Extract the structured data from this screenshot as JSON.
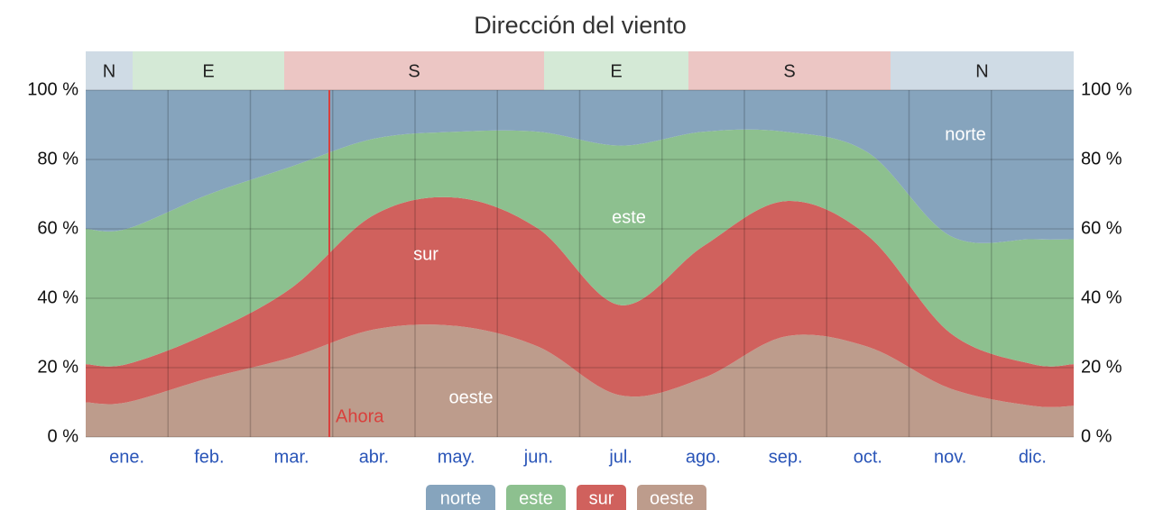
{
  "chart_data": {
    "type": "stacked_area",
    "title": "Dirección del viento",
    "categories": [
      "ene.",
      "feb.",
      "mar.",
      "abr.",
      "may.",
      "jun.",
      "jul.",
      "ago.",
      "sep.",
      "oct.",
      "nov.",
      "dic."
    ],
    "series": [
      {
        "name": "oeste",
        "color": "#bd9c8c",
        "values": [
          10,
          17,
          23,
          31,
          32,
          26,
          12,
          17,
          29,
          26,
          14,
          9
        ]
      },
      {
        "name": "sur",
        "color": "#d0615d",
        "values": [
          11,
          13,
          20,
          33,
          37,
          34,
          26,
          38,
          39,
          32,
          16,
          12
        ]
      },
      {
        "name": "este",
        "color": "#8dc08f",
        "values": [
          39,
          40,
          35,
          22,
          19,
          28,
          46,
          33,
          20,
          24,
          28,
          36
        ]
      },
      {
        "name": "norte",
        "color": "#86a4bd",
        "values": [
          40,
          30,
          22,
          14,
          12,
          12,
          16,
          12,
          12,
          18,
          42,
          43
        ]
      }
    ],
    "ylim": [
      0,
      100
    ],
    "yticks": [
      {
        "value": 0,
        "label": "0 %"
      },
      {
        "value": 20,
        "label": "20 %"
      },
      {
        "value": 40,
        "label": "40 %"
      },
      {
        "value": 60,
        "label": "60 %"
      },
      {
        "value": 80,
        "label": "80 %"
      },
      {
        "value": 100,
        "label": "100 %"
      }
    ],
    "y2lim": [
      100,
      0
    ],
    "y2ticks": [
      {
        "value": 0,
        "label": "100 %"
      },
      {
        "value": 20,
        "label": "80 %"
      },
      {
        "value": 40,
        "label": "60 %"
      },
      {
        "value": 60,
        "label": "40 %"
      },
      {
        "value": 80,
        "label": "20 %"
      },
      {
        "value": 100,
        "label": "0 %"
      }
    ],
    "grid": true,
    "dominant": [
      {
        "label": "N",
        "color": "#cfdbe5"
      },
      {
        "label": "E",
        "color": "#d4e9d6"
      },
      {
        "label": "S",
        "color": "#ecc6c4"
      },
      {
        "label": "E",
        "color": "#d4e9d6"
      },
      {
        "label": "S",
        "color": "#ecc6c4"
      },
      {
        "label": "N",
        "color": "#cfdbe5"
      }
    ],
    "annotation": "Ahora"
  }
}
